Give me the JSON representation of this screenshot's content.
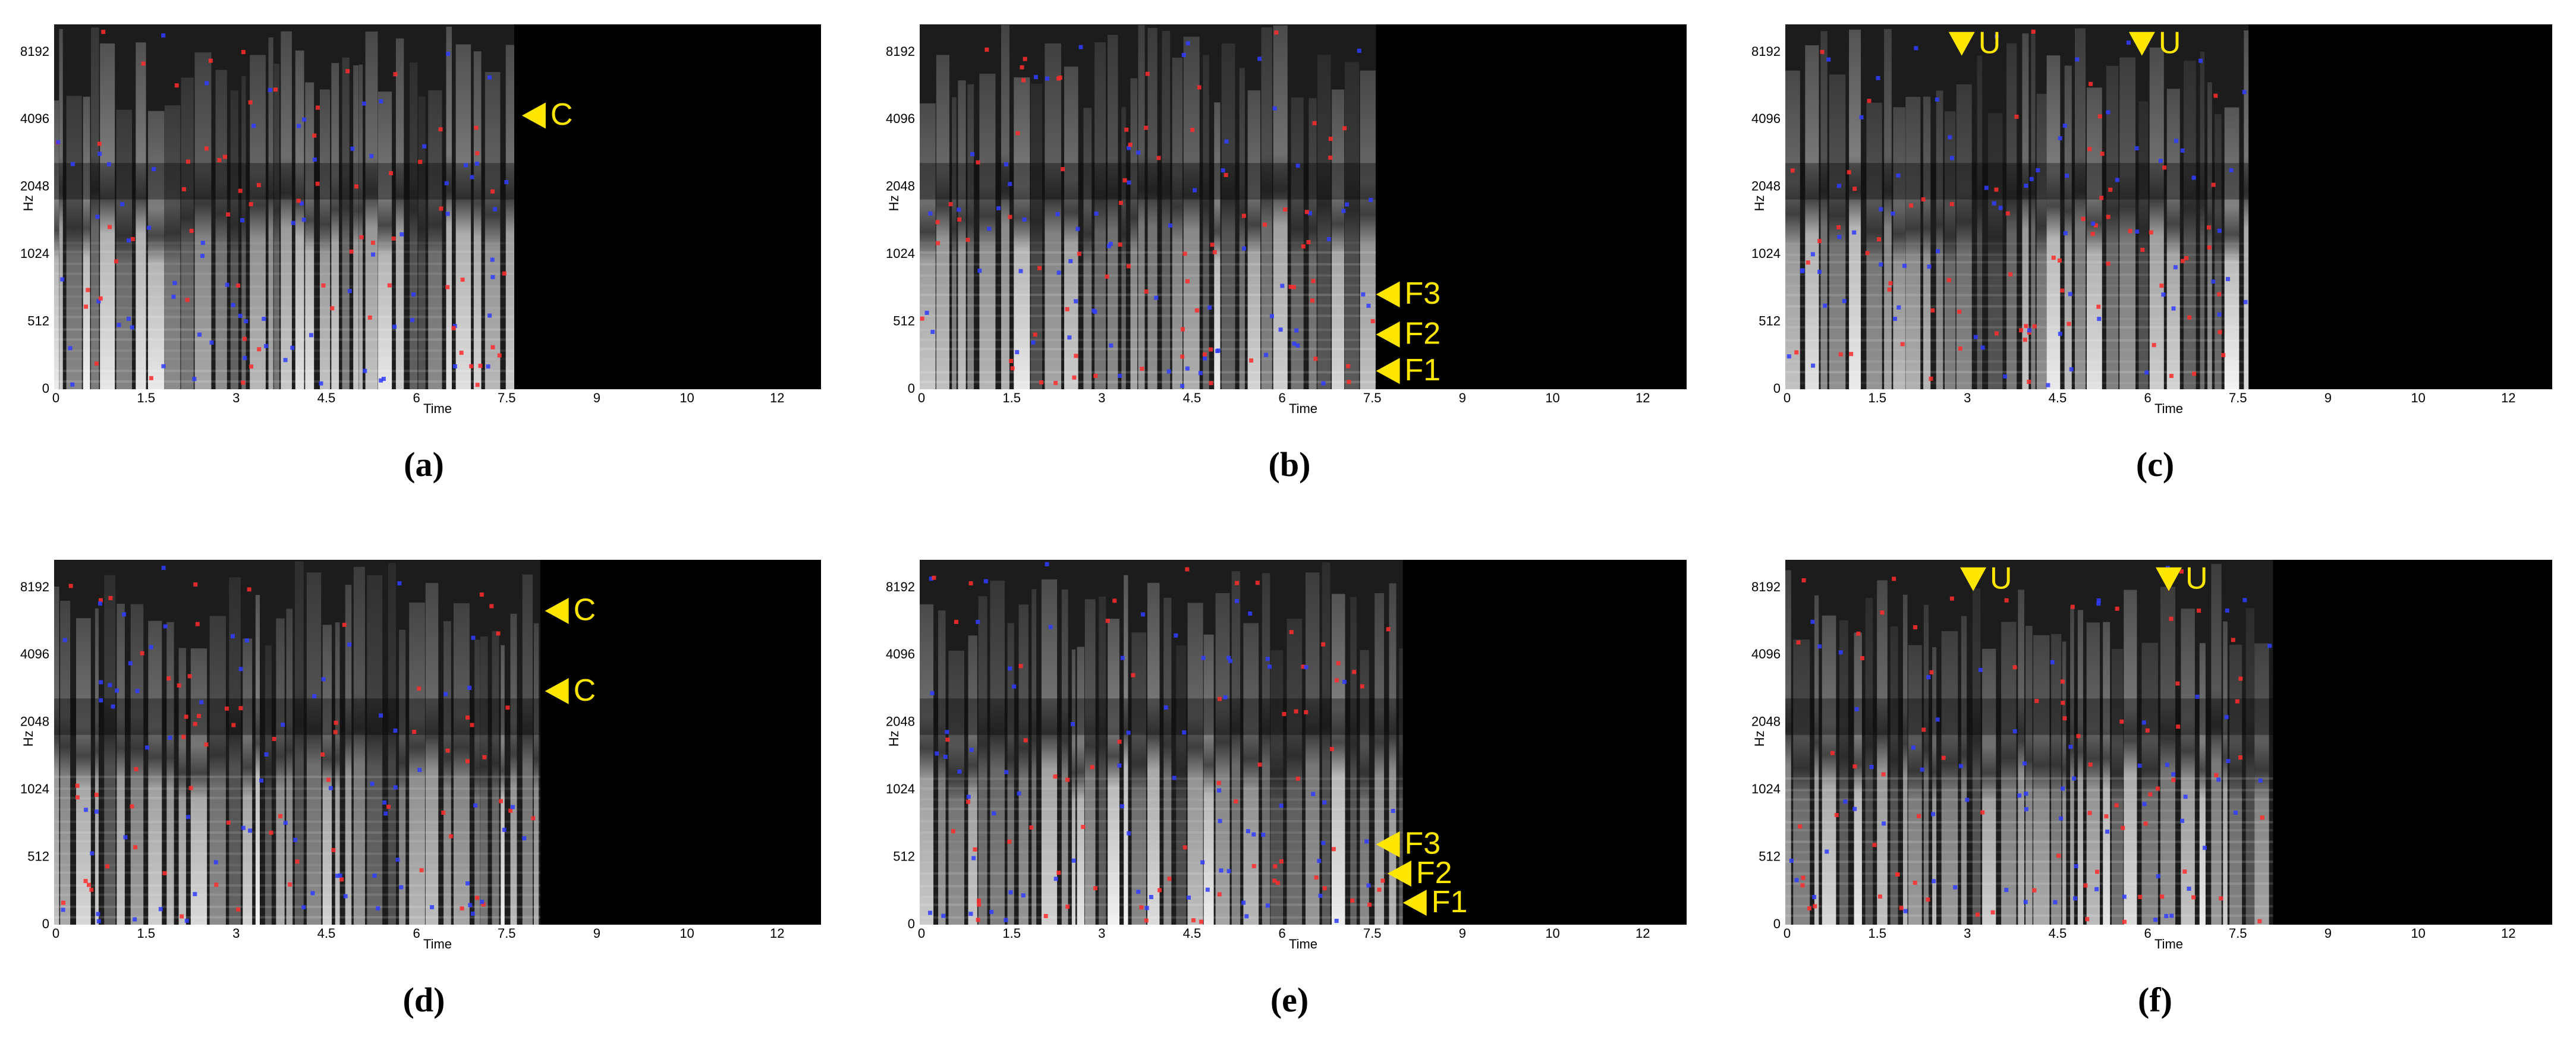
{
  "axes": {
    "y_label": "Hz",
    "x_label": "Time",
    "yticks": [
      "0",
      "512",
      "1024",
      "2048",
      "4096",
      "8192"
    ],
    "xticks": [
      "0",
      "1.5",
      "3",
      "4.5",
      "6",
      "7.5",
      "9",
      "10",
      "12"
    ]
  },
  "panels": [
    {
      "caption": "(a)",
      "annotations": [
        "C"
      ]
    },
    {
      "caption": "(b)",
      "annotations": [
        "F3",
        "F2",
        "F1"
      ]
    },
    {
      "caption": "(c)",
      "annotations": [
        "U",
        "U"
      ]
    },
    {
      "caption": "(d)",
      "annotations": [
        "C",
        "C"
      ]
    },
    {
      "caption": "(e)",
      "annotations": [
        "F3",
        "F2",
        "F1"
      ]
    },
    {
      "caption": "(f)",
      "annotations": [
        "U",
        "U"
      ]
    }
  ]
}
